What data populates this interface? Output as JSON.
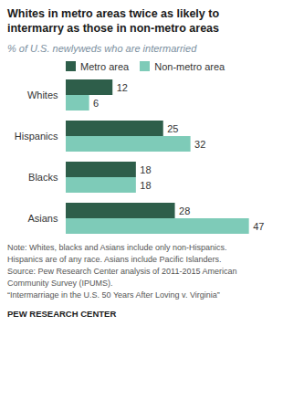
{
  "chart_data": {
    "type": "bar",
    "orientation": "horizontal",
    "title": "Whites in metro areas twice as likely to\nintermarry as those in non-metro areas",
    "subtitle": "% of U.S. newlyweds who are intermarried",
    "categories": [
      "Whites",
      "Hispanics",
      "Blacks",
      "Asians"
    ],
    "series": [
      {
        "name": "Metro area",
        "color": "#2e5e4a",
        "values": [
          12,
          25,
          18,
          28
        ]
      },
      {
        "name": "Non-metro area",
        "color": "#7ecbb8",
        "values": [
          6,
          32,
          18,
          47
        ]
      }
    ],
    "xlim": [
      0,
      52
    ],
    "data_labels": true,
    "tick_labels": "y",
    "grid": false,
    "legend": "top",
    "annotations": [
      "Note: Whites, blacks and Asians include only non-Hispanics.",
      "Hispanics are of any race. Asians include Pacific Islanders.",
      "Source: Pew Research Center analysis of 2011-2015 American",
      "Community Survey (IPUMS).",
      "“Intermarriage in the U.S. 50 Years After Loving v. Virginia”"
    ],
    "footer": "PEW RESEARCH CENTER"
  }
}
